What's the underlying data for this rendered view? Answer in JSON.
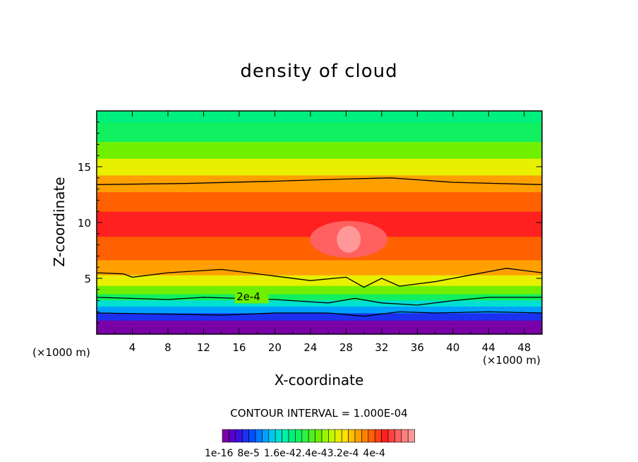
{
  "chart_data": {
    "type": "heatmap",
    "title": "density of cloud",
    "xlabel": "X-coordinate",
    "ylabel": "Z-coordinate",
    "x_unit": "(×1000 m)",
    "xlim": [
      0,
      50
    ],
    "ylim": [
      0,
      20
    ],
    "x_ticks": [
      4,
      8,
      12,
      16,
      20,
      24,
      28,
      32,
      36,
      40,
      44,
      48
    ],
    "y_ticks": [
      5,
      10,
      15
    ],
    "contour_interval_text": "CONTOUR INTERVAL = 1.000E-04",
    "contour_label": "2e-4",
    "colorbar": {
      "labels": [
        "1e-16",
        "8e-5",
        "1.6e-4",
        "2.4e-4",
        "3.2e-4",
        "4e-4"
      ],
      "colors": [
        "#7a00a8",
        "#5a00c8",
        "#3c10e0",
        "#1c30f0",
        "#0050ff",
        "#0078ff",
        "#00a0ff",
        "#00c8f0",
        "#00e0d0",
        "#00f0a8",
        "#00f080",
        "#10f060",
        "#30f040",
        "#50f020",
        "#70f000",
        "#98f800",
        "#c0f800",
        "#e8f000",
        "#ffe000",
        "#ffc000",
        "#ffa000",
        "#ff8000",
        "#ff6000",
        "#ff4010",
        "#ff2020",
        "#ff4040",
        "#ff6060",
        "#ff8080",
        "#ff9898"
      ]
    },
    "vertical_profile": [
      {
        "z": 0.9,
        "value": 1e-16
      },
      {
        "z": 1.6,
        "value": 4e-05
      },
      {
        "z": 2.2,
        "value": 8e-05
      },
      {
        "z": 2.8,
        "value": 0.00012
      },
      {
        "z": 3.3,
        "value": 0.00016
      },
      {
        "z": 3.9,
        "value": 0.0002
      },
      {
        "z": 4.8,
        "value": 0.00024
      },
      {
        "z": 5.8,
        "value": 0.00028
      },
      {
        "z": 7.5,
        "value": 0.00032
      },
      {
        "z": 10.0,
        "value": 0.00034
      },
      {
        "z": 12.0,
        "value": 0.00032
      },
      {
        "z": 13.5,
        "value": 0.00028
      },
      {
        "z": 15.0,
        "value": 0.00024
      },
      {
        "z": 16.5,
        "value": 0.0002
      },
      {
        "z": 18.0,
        "value": 0.00016
      },
      {
        "z": 20.0,
        "value": 0.00014
      }
    ],
    "contours": [
      {
        "level": 0.00028,
        "points": [
          [
            0,
            13.4
          ],
          [
            10,
            13.5
          ],
          [
            20,
            13.7
          ],
          [
            28,
            13.9
          ],
          [
            33,
            14.0
          ],
          [
            40,
            13.6
          ],
          [
            50,
            13.4
          ]
        ]
      },
      {
        "level": 0.00028,
        "points": [
          [
            0,
            5.5
          ],
          [
            3,
            5.4
          ],
          [
            4,
            5.1
          ],
          [
            8,
            5.5
          ],
          [
            14,
            5.8
          ],
          [
            20,
            5.2
          ],
          [
            24,
            4.8
          ],
          [
            28,
            5.1
          ],
          [
            30,
            4.2
          ],
          [
            32,
            5.0
          ],
          [
            34,
            4.3
          ],
          [
            38,
            4.7
          ],
          [
            42,
            5.3
          ],
          [
            46,
            5.9
          ],
          [
            50,
            5.5
          ]
        ]
      },
      {
        "level": 0.0002,
        "points": [
          [
            0,
            3.3
          ],
          [
            8,
            3.1
          ],
          [
            12,
            3.3
          ],
          [
            16,
            3.2
          ],
          [
            20,
            3.1
          ],
          [
            26,
            2.8
          ],
          [
            29,
            3.2
          ],
          [
            32,
            2.8
          ],
          [
            36,
            2.6
          ],
          [
            40,
            3.0
          ],
          [
            44,
            3.3
          ],
          [
            50,
            3.3
          ]
        ]
      },
      {
        "level": 0.00012,
        "points": [
          [
            0,
            1.9
          ],
          [
            8,
            1.8
          ],
          [
            14,
            1.7
          ],
          [
            20,
            1.9
          ],
          [
            26,
            1.9
          ],
          [
            30,
            1.6
          ],
          [
            34,
            2.0
          ],
          [
            38,
            1.9
          ],
          [
            44,
            2.0
          ],
          [
            50,
            1.9
          ]
        ]
      }
    ],
    "maximum": {
      "x": 28.3,
      "z": 8.5,
      "value": 0.0004
    }
  }
}
